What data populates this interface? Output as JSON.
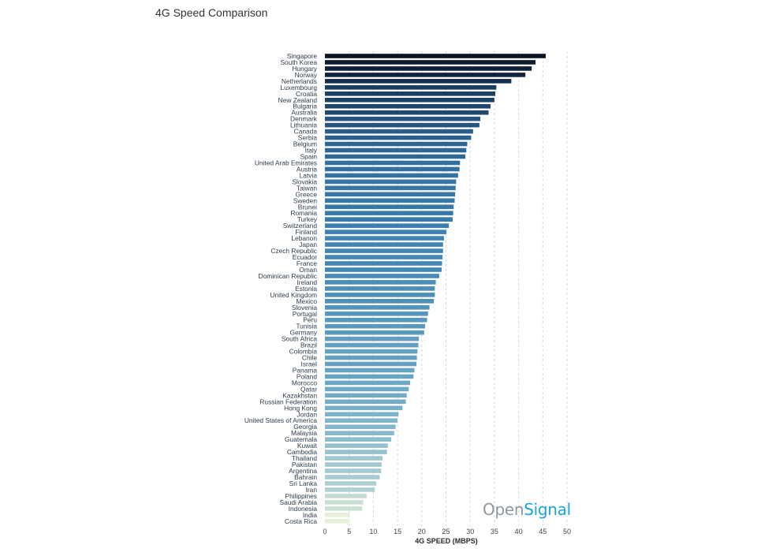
{
  "chart_data": {
    "type": "bar",
    "orientation": "horizontal",
    "title": "4G Speed Comparison",
    "xlabel": "4G SPEED (MBPS)",
    "ylabel": "",
    "xlim": [
      0,
      50
    ],
    "xticks": [
      0,
      5,
      10,
      15,
      20,
      25,
      30,
      35,
      40,
      45,
      50
    ],
    "grid": "vertical dashed",
    "color_scale": [
      "#e8f1d8",
      "#7eb3c9",
      "#3a80b4",
      "#1a3a5e",
      "#0a1220"
    ],
    "categories": [
      "Singapore",
      "South Korea",
      "Hungary",
      "Norway",
      "Netherlands",
      "Luxembourg",
      "Croatia",
      "New Zealand",
      "Bulgaria",
      "Australia",
      "Denmark",
      "Lithuania",
      "Canada",
      "Serbia",
      "Belgium",
      "Italy",
      "Spain",
      "United Arab Emirates",
      "Austria",
      "Latvia",
      "Slovakia",
      "Taiwan",
      "Greece",
      "Sweden",
      "Brunei",
      "Romania",
      "Turkey",
      "Switzerland",
      "Finland",
      "Lebanon",
      "Japan",
      "Czech Republic",
      "Ecuador",
      "France",
      "Oman",
      "Dominican Republic",
      "Ireland",
      "Estonia",
      "United Kingdom",
      "Mexico",
      "Slovenia",
      "Portugal",
      "Peru",
      "Tunisia",
      "Germany",
      "South Africa",
      "Brazil",
      "Colombia",
      "Chile",
      "Israel",
      "Panama",
      "Poland",
      "Morocco",
      "Qatar",
      "Kazakhstan",
      "Russian Federation",
      "Hong Kong",
      "Jordan",
      "United States of America",
      "Georgia",
      "Malaysia",
      "Guatemala",
      "Kuwait",
      "Cambodia",
      "Thailand",
      "Pakistan",
      "Argentina",
      "Bahrain",
      "Sri Lanka",
      "Iran",
      "Philippines",
      "Saudi Arabia",
      "Indonesia",
      "India",
      "Costa Rica"
    ],
    "values": [
      45.6,
      43.5,
      42.7,
      41.4,
      38.5,
      35.4,
      35.2,
      35.0,
      34.2,
      33.8,
      32.1,
      31.9,
      30.6,
      30.2,
      29.4,
      29.2,
      29.0,
      27.9,
      27.8,
      27.5,
      27.1,
      27.0,
      26.9,
      26.8,
      26.6,
      26.5,
      26.4,
      25.6,
      25.1,
      24.6,
      24.4,
      24.4,
      24.3,
      24.2,
      24.1,
      23.6,
      22.9,
      22.7,
      22.7,
      22.5,
      21.6,
      21.3,
      21.1,
      20.7,
      20.5,
      19.4,
      19.3,
      19.1,
      19.0,
      18.9,
      18.5,
      18.3,
      17.6,
      17.3,
      16.9,
      16.7,
      16.0,
      15.2,
      15.0,
      14.6,
      14.3,
      13.7,
      13.0,
      12.8,
      11.9,
      11.7,
      11.6,
      11.3,
      10.6,
      10.3,
      8.6,
      7.9,
      7.7,
      5.1,
      5.1
    ]
  },
  "watermark": {
    "part1": "Open",
    "part2": "Signal"
  }
}
